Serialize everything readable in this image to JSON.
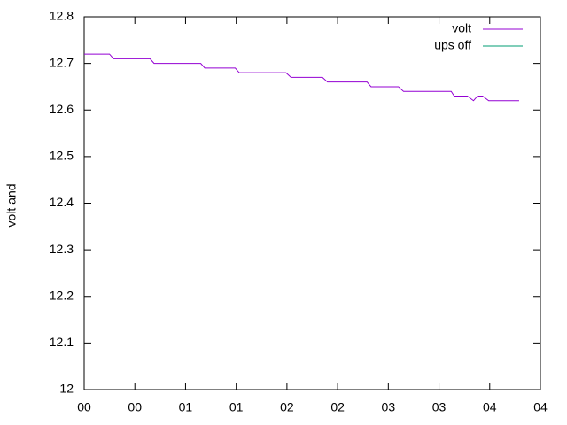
{
  "chart_data": {
    "type": "line",
    "y_label": "volt and",
    "xlim": [
      0,
      4.5
    ],
    "xticks": [
      {
        "value": 0,
        "label": "00"
      },
      {
        "value": 0.5,
        "label": "00"
      },
      {
        "value": 1,
        "label": "01"
      },
      {
        "value": 1.5,
        "label": "01"
      },
      {
        "value": 2,
        "label": "02"
      },
      {
        "value": 2.5,
        "label": "02"
      },
      {
        "value": 3,
        "label": "03"
      },
      {
        "value": 3.5,
        "label": "03"
      },
      {
        "value": 4,
        "label": "04"
      },
      {
        "value": 4.5,
        "label": "04"
      }
    ],
    "ylim": [
      12,
      12.8
    ],
    "yticks": [
      12,
      12.1,
      12.2,
      12.3,
      12.4,
      12.5,
      12.6,
      12.7,
      12.8
    ],
    "legend": "top-right",
    "series": [
      {
        "name": "volt",
        "color": "#9400d3",
        "x": [
          0,
          0.25,
          0.29,
          0.65,
          0.69,
          1.15,
          1.19,
          1.49,
          1.53,
          1.99,
          2.04,
          2.35,
          2.4,
          2.79,
          2.83,
          3.1,
          3.15,
          3.62,
          3.65,
          3.78,
          3.84,
          3.88,
          3.93,
          3.99,
          4.29
        ],
        "values": [
          12.72,
          12.72,
          12.71,
          12.71,
          12.7,
          12.7,
          12.69,
          12.69,
          12.68,
          12.68,
          12.67,
          12.67,
          12.66,
          12.66,
          12.65,
          12.65,
          12.64,
          12.64,
          12.63,
          12.63,
          12.62,
          12.63,
          12.63,
          12.62,
          12.62
        ]
      },
      {
        "name": "ups off",
        "color": "#009e73",
        "x": [],
        "values": []
      }
    ]
  }
}
